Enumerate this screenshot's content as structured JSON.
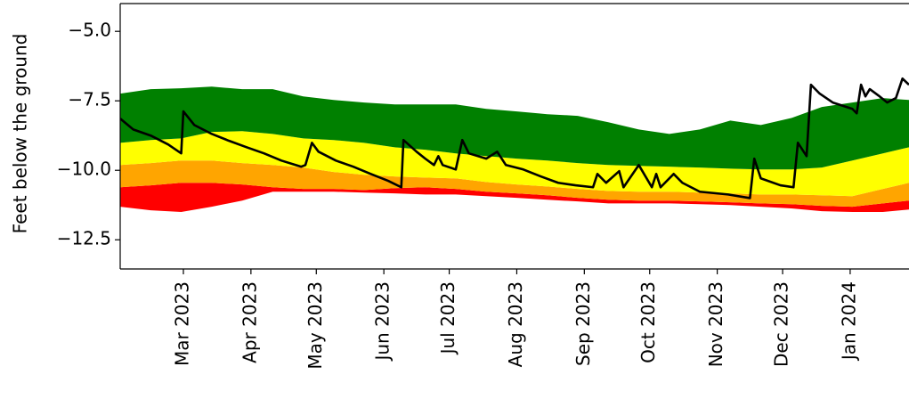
{
  "chart_data": {
    "type": "line",
    "ylabel": "Feet below the ground",
    "ylim": [
      -13.55,
      -4.0
    ],
    "yticks": [
      {
        "value": -5.0,
        "label": "−5.0"
      },
      {
        "value": -7.5,
        "label": "−7.5"
      },
      {
        "value": -10.0,
        "label": "−10.0"
      },
      {
        "value": -12.5,
        "label": "−12.5"
      }
    ],
    "xlim": [
      "2023-01-31",
      "2024-01-28"
    ],
    "xticks": [
      {
        "value": "2023-03",
        "label": "Mar 2023"
      },
      {
        "value": "2023-04",
        "label": "Apr 2023"
      },
      {
        "value": "2023-05",
        "label": "May 2023"
      },
      {
        "value": "2023-06",
        "label": "Jun 2023"
      },
      {
        "value": "2023-07",
        "label": "Jul 2023"
      },
      {
        "value": "2023-08",
        "label": "Aug 2023"
      },
      {
        "value": "2023-09",
        "label": "Sep 2023"
      },
      {
        "value": "2023-10",
        "label": "Oct 2023"
      },
      {
        "value": "2023-11",
        "label": "Nov 2023"
      },
      {
        "value": "2023-12",
        "label": "Dec 2023"
      },
      {
        "value": "2024-01",
        "label": "Jan 2024"
      }
    ],
    "x": [
      "2023-01-31",
      "2023-02-14",
      "2023-02-28",
      "2023-03-14",
      "2023-03-28",
      "2023-04-11",
      "2023-04-25",
      "2023-05-09",
      "2023-05-23",
      "2023-06-06",
      "2023-06-20",
      "2023-07-04",
      "2023-07-18",
      "2023-08-01",
      "2023-08-15",
      "2023-08-29",
      "2023-09-12",
      "2023-09-26",
      "2023-10-10",
      "2023-10-24",
      "2023-11-07",
      "2023-11-21",
      "2023-12-05",
      "2023-12-19",
      "2024-01-02",
      "2024-01-16",
      "2024-01-28"
    ],
    "band_colors": [
      "#ff0000",
      "#ffa500",
      "#ffff00",
      "#008000"
    ],
    "percentile_bounds": [
      [
        -11.31,
        -11.44,
        -11.5,
        -11.31,
        -11.09,
        -10.77,
        -10.77,
        -10.77,
        -10.8,
        -10.83,
        -10.87,
        -10.87,
        -10.93,
        -10.99,
        -11.06,
        -11.12,
        -11.19,
        -11.19,
        -11.19,
        -11.22,
        -11.25,
        -11.31,
        -11.37,
        -11.47,
        -11.5,
        -11.5,
        -11.41
      ],
      [
        -10.61,
        -10.54,
        -10.45,
        -10.45,
        -10.51,
        -10.61,
        -10.67,
        -10.67,
        -10.71,
        -10.64,
        -10.61,
        -10.67,
        -10.77,
        -10.83,
        -10.9,
        -10.99,
        -11.06,
        -11.09,
        -11.09,
        -11.12,
        -11.15,
        -11.19,
        -11.22,
        -11.28,
        -11.31,
        -11.19,
        -11.09
      ],
      [
        -9.81,
        -9.74,
        -9.65,
        -9.65,
        -9.74,
        -9.81,
        -9.9,
        -10.06,
        -10.16,
        -10.22,
        -10.26,
        -10.29,
        -10.42,
        -10.51,
        -10.58,
        -10.67,
        -10.74,
        -10.77,
        -10.77,
        -10.8,
        -10.83,
        -10.87,
        -10.87,
        -10.9,
        -10.93,
        -10.67,
        -10.45
      ],
      [
        -9.01,
        -8.91,
        -8.85,
        -8.62,
        -8.59,
        -8.69,
        -8.85,
        -8.91,
        -9.01,
        -9.17,
        -9.26,
        -9.39,
        -9.49,
        -9.58,
        -9.65,
        -9.74,
        -9.81,
        -9.84,
        -9.87,
        -9.9,
        -9.94,
        -9.97,
        -9.97,
        -9.9,
        -9.65,
        -9.39,
        -9.17
      ],
      [
        -7.24,
        -7.08,
        -7.05,
        -6.99,
        -7.08,
        -7.08,
        -7.34,
        -7.47,
        -7.56,
        -7.63,
        -7.63,
        -7.63,
        -7.79,
        -7.88,
        -7.98,
        -8.04,
        -8.27,
        -8.53,
        -8.69,
        -8.53,
        -8.21,
        -8.37,
        -8.12,
        -7.72,
        -7.56,
        -7.4,
        -7.47
      ]
    ],
    "series": [
      {
        "color": "#000000",
        "x": [
          "2023-01-31",
          "2023-02-06",
          "2023-02-14",
          "2023-02-22",
          "2023-02-28",
          "2023-03-01",
          "2023-03-06",
          "2023-03-14",
          "2023-03-22",
          "2023-03-30",
          "2023-04-07",
          "2023-04-15",
          "2023-04-24",
          "2023-04-26",
          "2023-04-29",
          "2023-05-02",
          "2023-05-10",
          "2023-05-18",
          "2023-05-26",
          "2023-06-03",
          "2023-06-09",
          "2023-06-10",
          "2023-06-16",
          "2023-06-20",
          "2023-06-24",
          "2023-06-26",
          "2023-06-28",
          "2023-07-04",
          "2023-07-07",
          "2023-07-10",
          "2023-07-18",
          "2023-07-23",
          "2023-07-27",
          "2023-08-04",
          "2023-08-12",
          "2023-08-20",
          "2023-08-28",
          "2023-09-05",
          "2023-09-07",
          "2023-09-11",
          "2023-09-17",
          "2023-09-19",
          "2023-09-26",
          "2023-10-02",
          "2023-10-04",
          "2023-10-06",
          "2023-10-12",
          "2023-10-16",
          "2023-10-24",
          "2023-11-06",
          "2023-11-16",
          "2023-11-18",
          "2023-11-21",
          "2023-11-30",
          "2023-12-06",
          "2023-12-08",
          "2023-12-12",
          "2023-12-14",
          "2023-12-18",
          "2023-12-24",
          "2024-01-02",
          "2024-01-04",
          "2024-01-06",
          "2024-01-08",
          "2024-01-10",
          "2024-01-14",
          "2024-01-18",
          "2024-01-22",
          "2024-01-25",
          "2024-01-28"
        ],
        "values": [
          -8.14,
          -8.53,
          -8.75,
          -9.07,
          -9.39,
          -7.88,
          -8.37,
          -8.69,
          -8.94,
          -9.17,
          -9.39,
          -9.65,
          -9.87,
          -9.81,
          -9.01,
          -9.33,
          -9.65,
          -9.87,
          -10.13,
          -10.38,
          -10.61,
          -8.91,
          -9.33,
          -9.58,
          -9.81,
          -9.49,
          -9.81,
          -9.97,
          -8.91,
          -9.39,
          -9.58,
          -9.33,
          -9.81,
          -9.97,
          -10.22,
          -10.45,
          -10.54,
          -10.61,
          -10.13,
          -10.45,
          -10.03,
          -10.61,
          -9.81,
          -10.61,
          -10.13,
          -10.61,
          -10.13,
          -10.45,
          -10.77,
          -10.87,
          -11.0,
          -9.58,
          -10.29,
          -10.54,
          -10.61,
          -9.01,
          -9.49,
          -6.92,
          -7.24,
          -7.56,
          -7.79,
          -7.95,
          -6.92,
          -7.34,
          -7.08,
          -7.31,
          -7.56,
          -7.4,
          -6.7,
          -6.92
        ]
      }
    ]
  }
}
